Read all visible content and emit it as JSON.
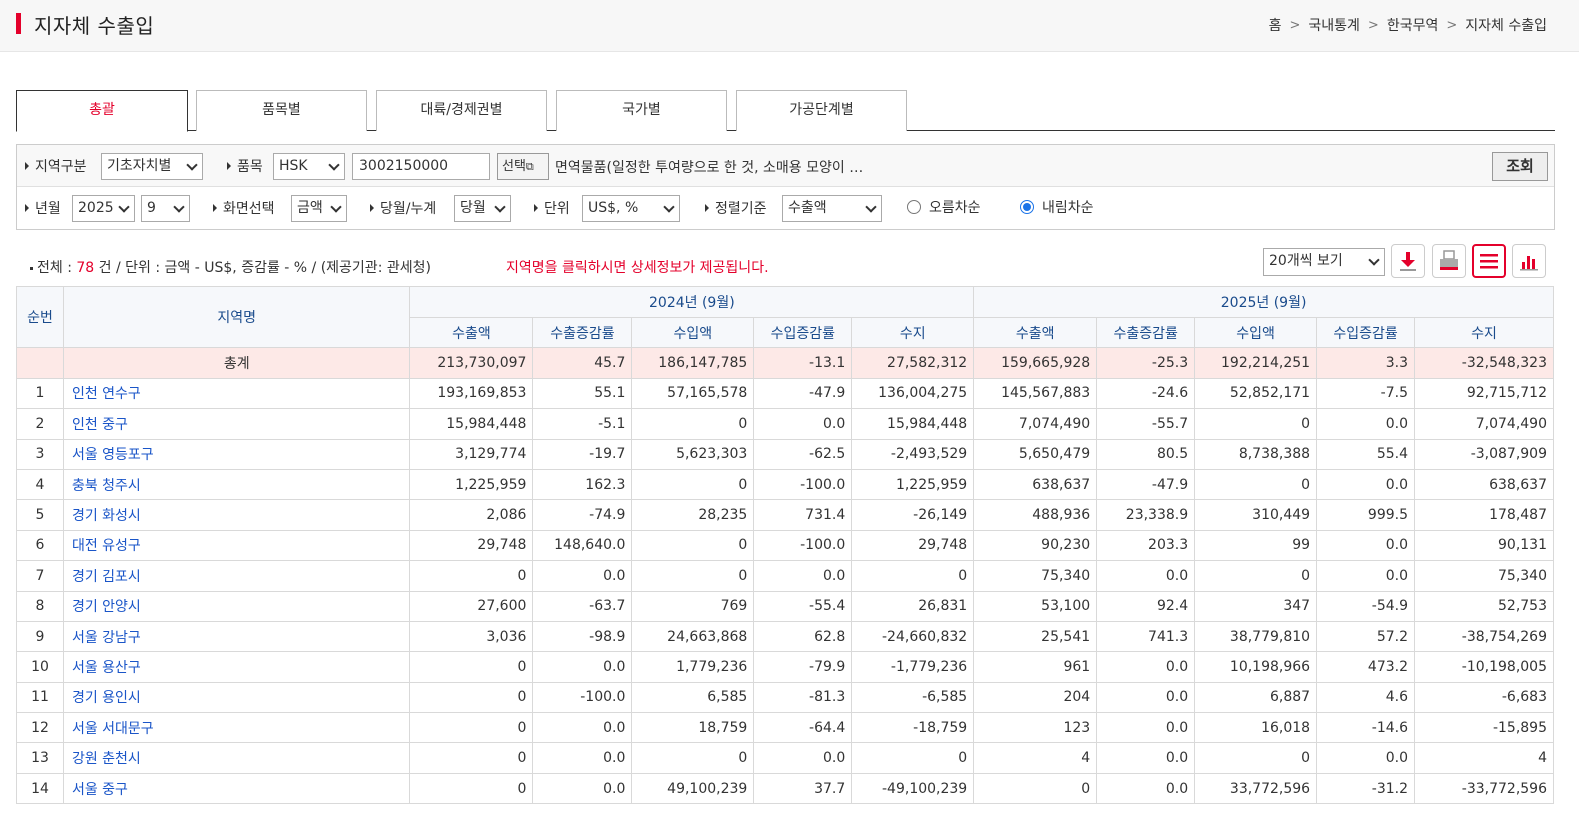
{
  "header": {
    "title": "지자체 수출입",
    "breadcrumb": [
      "홈",
      "국내통계",
      "한국무역",
      "지자체 수출입"
    ]
  },
  "tabs": [
    "총괄",
    "품목별",
    "대륙/경제권별",
    "국가별",
    "가공단계별"
  ],
  "filters": {
    "region_label": "지역구분",
    "region_value": "기초자치별",
    "item_label": "품목",
    "item_code_type": "HSK",
    "item_code": "3002150000",
    "select_button": "선택",
    "item_desc": "면역물품(일정한 투여량으로 한 것, 소매용 모양이 …",
    "search_button": "조회",
    "year_label": "년월",
    "year_value": "2025",
    "month_value": "9",
    "view_label": "화면선택",
    "view_value": "금액",
    "period_label": "당월/누계",
    "period_value": "당월",
    "unit_label": "단위",
    "unit_value": "US$, %",
    "sort_label": "정렬기준",
    "sort_value": "수출액",
    "asc_label": "오름차순",
    "desc_label": "내림차순"
  },
  "summary": {
    "prefix": "전체 : ",
    "count": "78",
    "suffix": " 건 / 단위 : 금액 - US$, 증감률 - % / (제공기관: 관세청)",
    "notice": "지역명을 클릭하시면 상세정보가 제공됩니다."
  },
  "page_size": "20개씩 보기",
  "icons": [
    "download-icon",
    "print-icon",
    "list-view-icon",
    "chart-view-icon"
  ],
  "table": {
    "col_index": "순번",
    "col_region": "지역명",
    "year1": "2024년 (9월)",
    "year2": "2025년 (9월)",
    "sub_headers": [
      "수출액",
      "수출증감률",
      "수입액",
      "수입증감률",
      "수지"
    ],
    "rows": [
      [
        "",
        "총계",
        "213,730,097",
        "45.7",
        "186,147,785",
        "-13.1",
        "27,582,312",
        "159,665,928",
        "-25.3",
        "192,214,251",
        "3.3",
        "-32,548,323"
      ],
      [
        "1",
        "인천 연수구",
        "193,169,853",
        "55.1",
        "57,165,578",
        "-47.9",
        "136,004,275",
        "145,567,883",
        "-24.6",
        "52,852,171",
        "-7.5",
        "92,715,712"
      ],
      [
        "2",
        "인천 중구",
        "15,984,448",
        "-5.1",
        "0",
        "0.0",
        "15,984,448",
        "7,074,490",
        "-55.7",
        "0",
        "0.0",
        "7,074,490"
      ],
      [
        "3",
        "서울 영등포구",
        "3,129,774",
        "-19.7",
        "5,623,303",
        "-62.5",
        "-2,493,529",
        "5,650,479",
        "80.5",
        "8,738,388",
        "55.4",
        "-3,087,909"
      ],
      [
        "4",
        "충북 청주시",
        "1,225,959",
        "162.3",
        "0",
        "-100.0",
        "1,225,959",
        "638,637",
        "-47.9",
        "0",
        "0.0",
        "638,637"
      ],
      [
        "5",
        "경기 화성시",
        "2,086",
        "-74.9",
        "28,235",
        "731.4",
        "-26,149",
        "488,936",
        "23,338.9",
        "310,449",
        "999.5",
        "178,487"
      ],
      [
        "6",
        "대전 유성구",
        "29,748",
        "148,640.0",
        "0",
        "-100.0",
        "29,748",
        "90,230",
        "203.3",
        "99",
        "0.0",
        "90,131"
      ],
      [
        "7",
        "경기 김포시",
        "0",
        "0.0",
        "0",
        "0.0",
        "0",
        "75,340",
        "0.0",
        "0",
        "0.0",
        "75,340"
      ],
      [
        "8",
        "경기 안양시",
        "27,600",
        "-63.7",
        "769",
        "-55.4",
        "26,831",
        "53,100",
        "92.4",
        "347",
        "-54.9",
        "52,753"
      ],
      [
        "9",
        "서울 강남구",
        "3,036",
        "-98.9",
        "24,663,868",
        "62.8",
        "-24,660,832",
        "25,541",
        "741.3",
        "38,779,810",
        "57.2",
        "-38,754,269"
      ],
      [
        "10",
        "서울 용산구",
        "0",
        "0.0",
        "1,779,236",
        "-79.9",
        "-1,779,236",
        "961",
        "0.0",
        "10,198,966",
        "473.2",
        "-10,198,005"
      ],
      [
        "11",
        "경기 용인시",
        "0",
        "-100.0",
        "6,585",
        "-81.3",
        "-6,585",
        "204",
        "0.0",
        "6,887",
        "4.6",
        "-6,683"
      ],
      [
        "12",
        "서울 서대문구",
        "0",
        "0.0",
        "18,759",
        "-64.4",
        "-18,759",
        "123",
        "0.0",
        "16,018",
        "-14.6",
        "-15,895"
      ],
      [
        "13",
        "강원 춘천시",
        "0",
        "0.0",
        "0",
        "0.0",
        "0",
        "4",
        "0.0",
        "0",
        "0.0",
        "4"
      ],
      [
        "14",
        "서울 중구",
        "0",
        "0.0",
        "49,100,239",
        "37.7",
        "-49,100,239",
        "0",
        "0.0",
        "33,772,596",
        "-31.2",
        "-33,772,596"
      ]
    ]
  }
}
